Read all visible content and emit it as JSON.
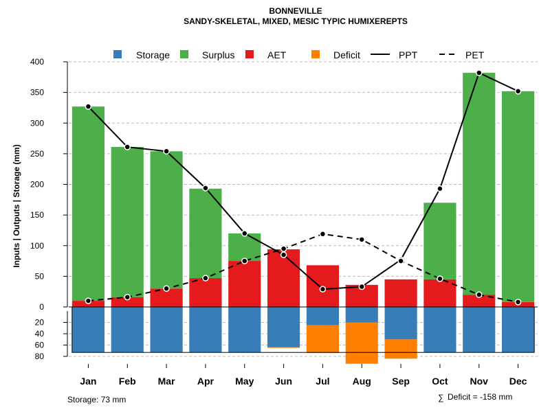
{
  "chart_data": {
    "type": "bar",
    "title": "BONNEVILLE",
    "subtitle": "SANDY-SKELETAL, MIXED, MESIC TYPIC HUMIXEREPTS",
    "ylabel": "Inputs | Outputs | Storage    (mm)",
    "categories": [
      "Jan",
      "Feb",
      "Mar",
      "Apr",
      "May",
      "Jun",
      "Jul",
      "Aug",
      "Sep",
      "Oct",
      "Nov",
      "Dec"
    ],
    "ylim_upper": [
      0,
      400
    ],
    "ylim_lower": [
      0,
      80
    ],
    "yticks_upper": [
      "0",
      "50",
      "100",
      "150",
      "200",
      "250",
      "300",
      "350",
      "400"
    ],
    "yticks_lower": [
      "20",
      "40",
      "60",
      "80"
    ],
    "legend": [
      "Storage",
      "Surplus",
      "AET",
      "Deficit",
      "PPT",
      "PET"
    ],
    "colors": {
      "storage": "#377eb8",
      "surplus": "#4daf4a",
      "aet": "#e41a1c",
      "deficit": "#ff7f00",
      "line": "#000000",
      "grid": "#bbbbbb"
    },
    "series": [
      {
        "name": "AET",
        "values": [
          10,
          16,
          30,
          47,
          75,
          94,
          68,
          36,
          45,
          45,
          20,
          8
        ]
      },
      {
        "name": "Surplus",
        "values": [
          317,
          245,
          224,
          146,
          45,
          0,
          0,
          0,
          0,
          125,
          362,
          344
        ]
      },
      {
        "name": "Storage",
        "values": [
          73,
          73,
          73,
          73,
          73,
          64,
          25,
          20,
          50,
          73,
          73,
          73
        ]
      },
      {
        "name": "Deficit",
        "values": [
          0,
          0,
          0,
          0,
          0,
          1,
          49,
          73,
          34,
          0,
          0,
          0
        ]
      },
      {
        "name": "PPT",
        "values": [
          327,
          261,
          254,
          194,
          120,
          85,
          29,
          33,
          77,
          193,
          382,
          352
        ]
      },
      {
        "name": "PET",
        "values": [
          10,
          16,
          30,
          47,
          75,
          95,
          119,
          110,
          75,
          46,
          20,
          8
        ]
      }
    ],
    "storage_note": "Storage: 73 mm",
    "deficit_note": "Deficit = -158 mm"
  }
}
